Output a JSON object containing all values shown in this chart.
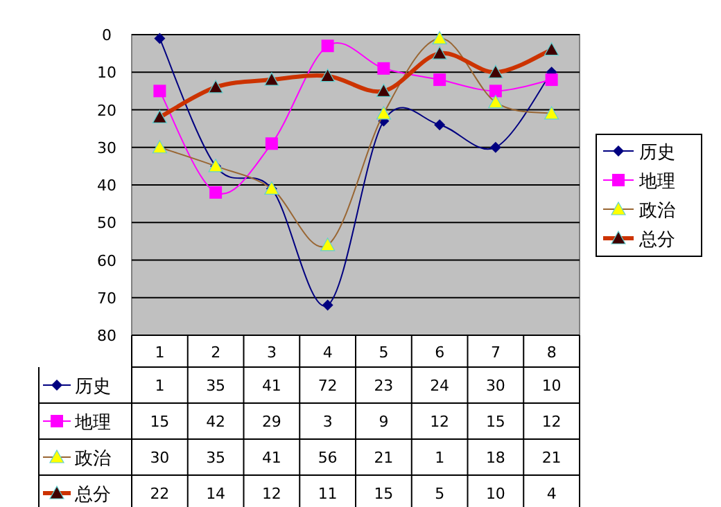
{
  "chart_data": {
    "type": "line",
    "categories": [
      "1",
      "2",
      "3",
      "4",
      "5",
      "6",
      "7",
      "8"
    ],
    "series": [
      {
        "name": "历史",
        "color": "#000080",
        "marker": "diamond",
        "values": [
          1,
          35,
          41,
          72,
          23,
          24,
          30,
          10
        ]
      },
      {
        "name": "地理",
        "color": "#ff00ff",
        "marker": "square",
        "values": [
          15,
          42,
          29,
          3,
          9,
          12,
          15,
          12
        ]
      },
      {
        "name": "政治",
        "color": "#996633",
        "marker": "triangle",
        "values": [
          30,
          35,
          41,
          56,
          21,
          1,
          18,
          21
        ]
      },
      {
        "name": "总分",
        "color": "#cc3300",
        "marker": "triangle",
        "values": [
          22,
          14,
          12,
          11,
          15,
          5,
          10,
          4
        ]
      }
    ],
    "ylim": [
      80,
      0
    ],
    "yticks": [
      0,
      10,
      20,
      30,
      40,
      50,
      60,
      70,
      80
    ],
    "grid": "y",
    "legend": "right",
    "data_labels": true
  }
}
